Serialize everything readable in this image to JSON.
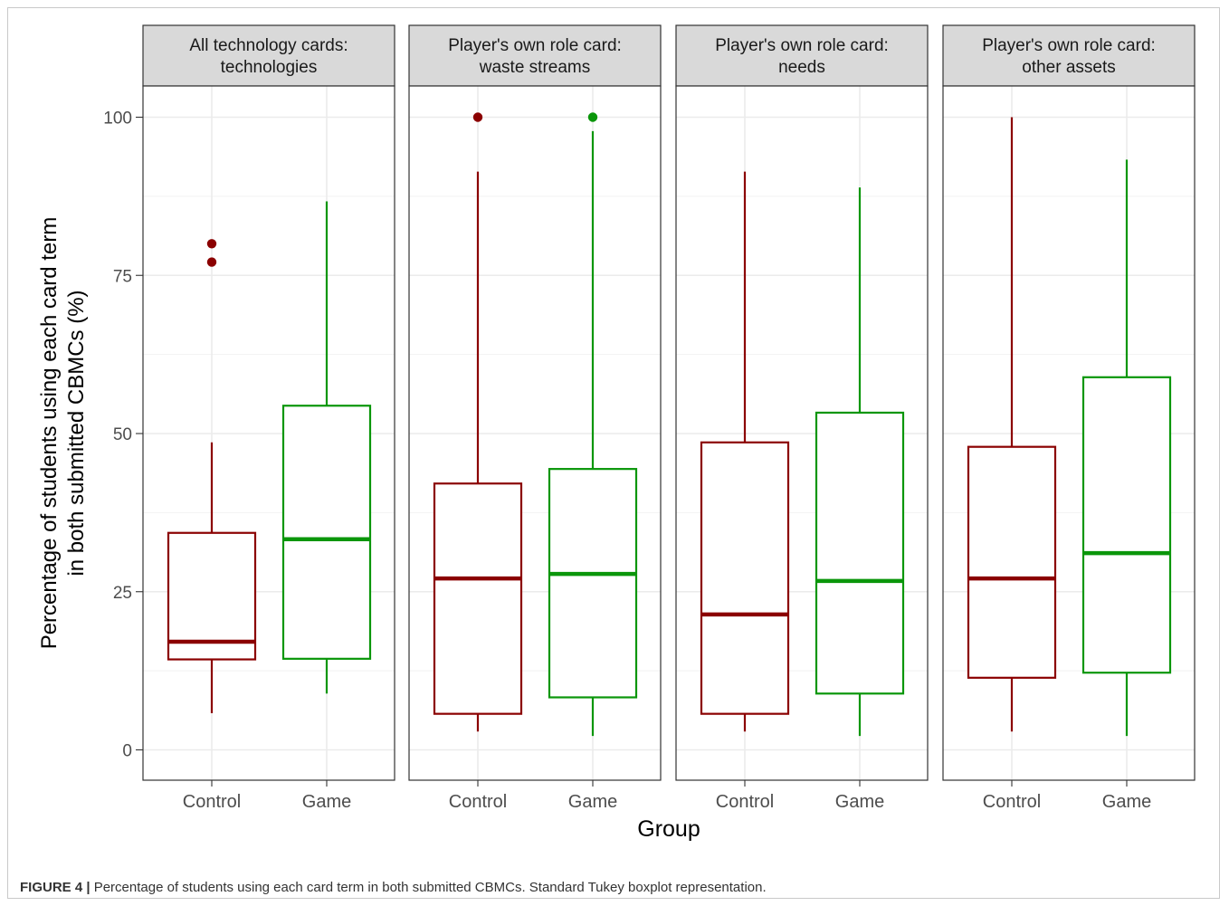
{
  "chart_data": {
    "type": "boxplot",
    "xlabel": "Group",
    "ylabel_lines": [
      "Percentage of students using each card term",
      "in both submitted CBMCs (%)"
    ],
    "ylim": [
      -4,
      109
    ],
    "yticks": [
      0,
      25,
      50,
      75,
      100
    ],
    "categories": [
      "Control",
      "Game"
    ],
    "group_colors": {
      "Control": "#8b0000",
      "Game": "#0a960a"
    },
    "panel_grid": true,
    "panels": [
      {
        "strip_lines": [
          "All technology cards:",
          "technologies"
        ],
        "boxes": [
          {
            "group": "Control",
            "lower_whisker": 5.8,
            "q1": 14.3,
            "median": 17.1,
            "q3": 34.3,
            "upper_whisker": 48.6,
            "outliers": [
              77.1,
              80
            ]
          },
          {
            "group": "Game",
            "lower_whisker": 8.9,
            "q1": 14.4,
            "median": 33.3,
            "q3": 54.4,
            "upper_whisker": 86.7,
            "outliers": []
          }
        ]
      },
      {
        "strip_lines": [
          "Player's own role card:",
          "waste streams"
        ],
        "boxes": [
          {
            "group": "Control",
            "lower_whisker": 2.9,
            "q1": 5.7,
            "median": 27.1,
            "q3": 42.1,
            "upper_whisker": 91.4,
            "outliers": [
              100
            ]
          },
          {
            "group": "Game",
            "lower_whisker": 2.2,
            "q1": 8.3,
            "median": 27.8,
            "q3": 44.4,
            "upper_whisker": 97.8,
            "outliers": [
              100
            ]
          }
        ]
      },
      {
        "strip_lines": [
          "Player's own role card:",
          "needs"
        ],
        "boxes": [
          {
            "group": "Control",
            "lower_whisker": 2.9,
            "q1": 5.7,
            "median": 21.4,
            "q3": 48.6,
            "upper_whisker": 91.4,
            "outliers": []
          },
          {
            "group": "Game",
            "lower_whisker": 2.2,
            "q1": 8.9,
            "median": 26.7,
            "q3": 53.3,
            "upper_whisker": 88.9,
            "outliers": []
          }
        ]
      },
      {
        "strip_lines": [
          "Player's own role card:",
          "other assets"
        ],
        "boxes": [
          {
            "group": "Control",
            "lower_whisker": 2.9,
            "q1": 11.4,
            "median": 27.1,
            "q3": 47.9,
            "upper_whisker": 100,
            "outliers": []
          },
          {
            "group": "Game",
            "lower_whisker": 2.2,
            "q1": 12.2,
            "median": 31.1,
            "q3": 58.9,
            "upper_whisker": 93.3,
            "outliers": []
          }
        ]
      }
    ]
  },
  "caption": {
    "label": "FIGURE 4 |",
    "text": " Percentage of students using each card term in both submitted CBMCs. Standard Tukey boxplot representation."
  }
}
